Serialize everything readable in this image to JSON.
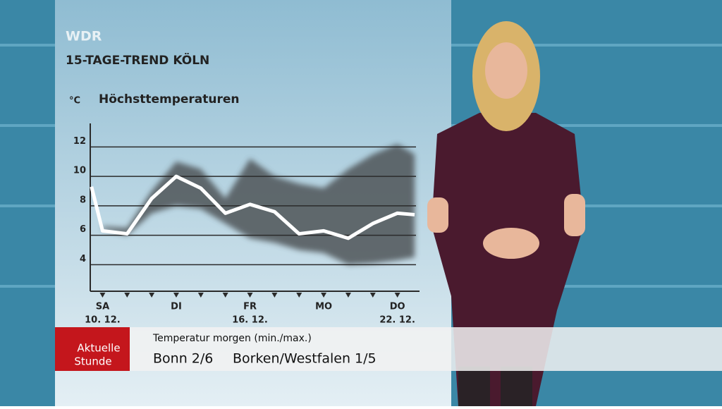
{
  "brand": "WDR",
  "heading": "15-TAGE-TREND KÖLN",
  "chart_data": {
    "type": "line",
    "unit": "°C",
    "title": "Höchsttemperaturen",
    "categories": [
      "SA",
      null,
      null,
      "DI",
      null,
      null,
      "FR",
      null,
      null,
      "MO",
      null,
      null,
      "DO"
    ],
    "category_dates": [
      "10. 12.",
      null,
      null,
      null,
      null,
      null,
      "16. 12.",
      null,
      null,
      null,
      null,
      null,
      "22. 12."
    ],
    "x": [
      -0.45,
      0,
      1,
      2,
      3,
      4,
      5,
      6,
      7,
      8,
      9,
      10,
      11,
      12,
      12.7
    ],
    "values": [
      9.3,
      6.3,
      6.1,
      8.5,
      10.0,
      9.2,
      7.5,
      8.1,
      7.6,
      6.1,
      6.3,
      5.8,
      6.8,
      7.5,
      7.4
    ],
    "color": "#ffffff",
    "band": {
      "x": [
        0,
        1,
        2,
        3,
        4,
        5,
        6,
        7,
        8,
        9,
        10,
        11,
        12,
        12.7
      ],
      "high": [
        6.6,
        6.5,
        9.0,
        11.0,
        10.5,
        8.5,
        11.2,
        10.0,
        9.5,
        9.2,
        10.5,
        11.5,
        12.2,
        11.5
      ],
      "low": [
        6.4,
        6.0,
        7.5,
        8.0,
        7.8,
        6.8,
        5.8,
        5.5,
        5.0,
        4.8,
        4.0,
        4.1,
        4.3,
        4.5
      ],
      "color": "#4f5559"
    },
    "xlim": [
      -0.5,
      12.9
    ],
    "ylim": [
      2.2,
      13.6
    ],
    "yticks": [
      4,
      6,
      8,
      10,
      12
    ],
    "grid": true
  },
  "ticker": {
    "logo_line1": "Aktuelle",
    "logo_line2": "Stunde",
    "caption": "Temperatur morgen (min./max.)",
    "items": [
      "Bonn 2/6",
      "Borken/Westfalen 1/5"
    ]
  }
}
